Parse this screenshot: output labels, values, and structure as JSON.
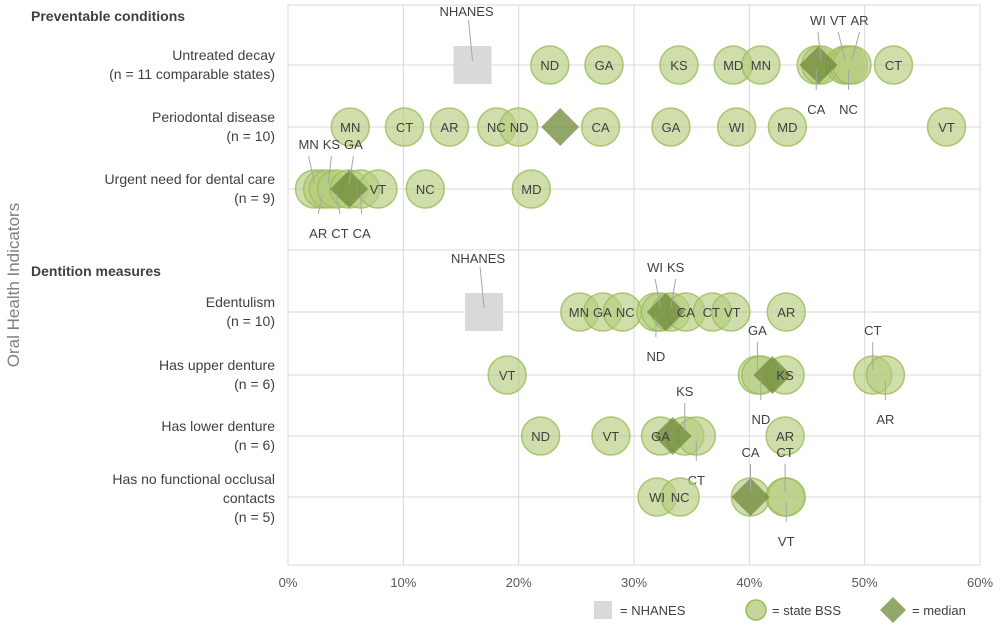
{
  "chart_data": {
    "type": "scatter",
    "ylabel": "Oral Health Indicators",
    "xlim": [
      0,
      60
    ],
    "xticks": [
      "0%",
      "10%",
      "20%",
      "30%",
      "40%",
      "50%",
      "60%"
    ],
    "grid": true,
    "legend_placement": "bottom-right",
    "legend": {
      "nhanes": "= NHANES",
      "state": "= state BSS",
      "median": "= median"
    },
    "colors": {
      "state": "#b5cc7e",
      "state_stroke": "#9bbb59",
      "median": "#6f8a3a",
      "nhanes": "#d9d9d9",
      "grid": "#d9d9d9"
    },
    "sections": [
      {
        "title": "Preventable conditions",
        "rows": [
          0,
          1,
          2
        ]
      },
      {
        "title": "Dentition measures",
        "rows": [
          3,
          4,
          5,
          6
        ]
      }
    ],
    "rows": [
      {
        "label": [
          "Untreated decay",
          "(n = 11 comparable states)"
        ],
        "nhanes": 16.0,
        "median": 46.0,
        "points": [
          [
            "ND",
            22.7,
            "in"
          ],
          [
            "GA",
            27.4,
            "in"
          ],
          [
            "KS",
            33.9,
            "in"
          ],
          [
            "MD",
            38.6,
            "in"
          ],
          [
            "MN",
            41.0,
            "in"
          ],
          [
            "CA",
            45.8,
            "below"
          ],
          [
            "WI",
            46.2,
            "above"
          ],
          [
            "VT",
            48.3,
            "above"
          ],
          [
            "NC",
            48.6,
            "below"
          ],
          [
            "AR",
            48.9,
            "above"
          ],
          [
            "CT",
            52.5,
            "in"
          ]
        ]
      },
      {
        "label": [
          "Periodontal disease",
          "(n = 10)"
        ],
        "median": 23.6,
        "points": [
          [
            "MN",
            5.4,
            "in"
          ],
          [
            "CT",
            10.1,
            "in"
          ],
          [
            "AR",
            14.0,
            "in"
          ],
          [
            "NC",
            18.1,
            "in"
          ],
          [
            "ND",
            20.0,
            "in"
          ],
          [
            "CA",
            27.1,
            "in"
          ],
          [
            "GA",
            33.2,
            "in"
          ],
          [
            "WI",
            38.9,
            "in"
          ],
          [
            "MD",
            43.3,
            "in"
          ],
          [
            "VT",
            57.1,
            "in"
          ]
        ]
      },
      {
        "label": [
          "Urgent need for dental care",
          "(n = 9)"
        ],
        "median": 5.3,
        "points": [
          [
            "MN",
            2.3,
            "above"
          ],
          [
            "AR",
            3.0,
            "below"
          ],
          [
            "KS",
            3.5,
            "above"
          ],
          [
            "CT",
            4.2,
            "below"
          ],
          [
            "GA",
            5.3,
            "above"
          ],
          [
            "CA",
            6.3,
            "below"
          ],
          [
            "VT",
            7.8,
            "in"
          ],
          [
            "NC",
            11.9,
            "in"
          ],
          [
            "MD",
            21.1,
            "in"
          ]
        ]
      },
      {
        "label": [
          "Edentulism",
          "(n = 10)"
        ],
        "nhanes": 17.0,
        "median": 32.75,
        "points": [
          [
            "MN",
            25.3,
            "in"
          ],
          [
            "GA",
            27.3,
            "in"
          ],
          [
            "NC",
            29.0,
            "in"
          ],
          [
            "ND",
            31.9,
            "below"
          ],
          [
            "WI",
            32.3,
            "above"
          ],
          [
            "KS",
            33.2,
            "above"
          ],
          [
            "CA",
            34.5,
            "in"
          ],
          [
            "CT",
            36.8,
            "in"
          ],
          [
            "VT",
            38.4,
            "in"
          ],
          [
            "AR",
            43.2,
            "in"
          ]
        ]
      },
      {
        "label": [
          "Has upper denture",
          "(n = 6)"
        ],
        "median": 42.0,
        "points": [
          [
            "VT",
            19.0,
            "in"
          ],
          [
            "GA",
            40.7,
            "above"
          ],
          [
            "ND",
            41.0,
            "below"
          ],
          [
            "KS",
            43.1,
            "in"
          ],
          [
            "CT",
            50.7,
            "above"
          ],
          [
            "AR",
            51.8,
            "below"
          ]
        ]
      },
      {
        "label": [
          "Has lower denture",
          "(n = 6)"
        ],
        "median": 33.35,
        "points": [
          [
            "ND",
            21.9,
            "in"
          ],
          [
            "VT",
            28.0,
            "in"
          ],
          [
            "GA",
            32.3,
            "in"
          ],
          [
            "KS",
            34.4,
            "above"
          ],
          [
            "CT",
            35.4,
            "below"
          ],
          [
            "AR",
            43.1,
            "in"
          ]
        ]
      },
      {
        "label": [
          "Has no functional occlusal",
          "contacts",
          "(n = 5)"
        ],
        "median": 40.1,
        "points": [
          [
            "WI",
            32.0,
            "in"
          ],
          [
            "NC",
            34.0,
            "in"
          ],
          [
            "CA",
            40.1,
            "above"
          ],
          [
            "CT",
            43.1,
            "above"
          ],
          [
            "VT",
            43.2,
            "below"
          ]
        ]
      }
    ]
  }
}
